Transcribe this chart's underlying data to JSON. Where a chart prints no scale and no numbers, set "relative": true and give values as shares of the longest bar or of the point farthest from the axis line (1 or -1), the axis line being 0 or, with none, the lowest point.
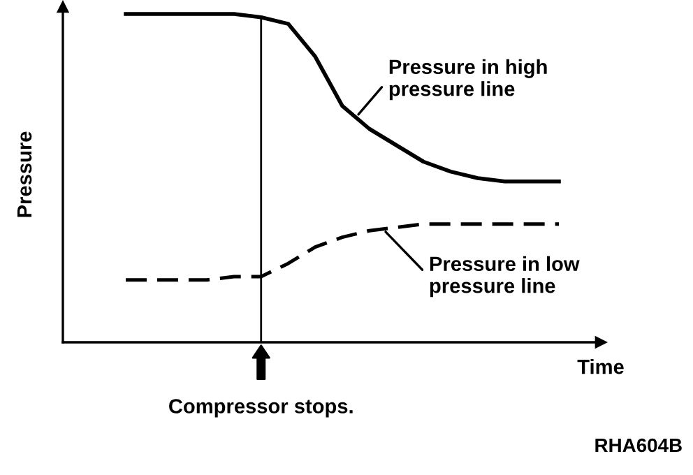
{
  "chart_data": {
    "type": "line",
    "relative": true,
    "ylabel": "Pressure",
    "xlabel": "Time",
    "categories": [
      null,
      null,
      null,
      null,
      null,
      null,
      null,
      null,
      null,
      null,
      null,
      null,
      null,
      null,
      null,
      null,
      null
    ],
    "series": [
      {
        "name": "Pressure in high\npressure line",
        "color": "#000000",
        "line_style": "solid",
        "values": [
          1.0,
          1.0,
          1.0,
          1.0,
          1.0,
          0.99,
          0.97,
          0.87,
          0.72,
          0.65,
          0.6,
          0.55,
          0.52,
          0.5,
          0.49,
          0.49,
          0.49
        ]
      },
      {
        "name": "Pressure in low\npressure line",
        "color": "#000000",
        "line_style": "dashed",
        "values": [
          0.19,
          0.19,
          0.19,
          0.19,
          0.2,
          0.2,
          0.24,
          0.29,
          0.32,
          0.34,
          0.35,
          0.36,
          0.36,
          0.36,
          0.36,
          0.36,
          0.36
        ]
      }
    ],
    "annotations": [
      "Compressor stops.",
      "RHA604B"
    ],
    "legend": false,
    "marker": "none",
    "tick_labels": false
  }
}
